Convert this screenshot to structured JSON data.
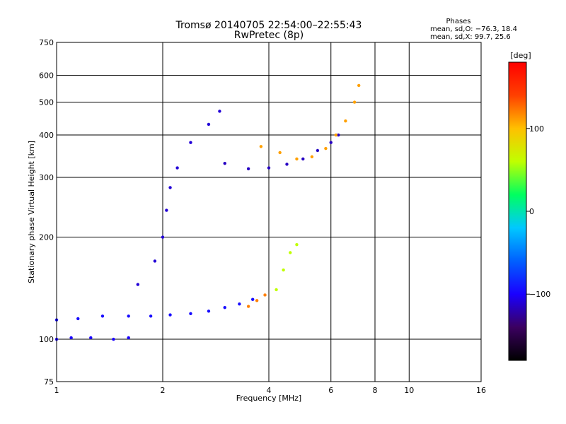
{
  "chart_data": {
    "type": "scatter",
    "title": "Tromsø 20140705 22:54:00–22:55:43",
    "subtitle": "RwPretec (8p)",
    "xlabel": "Frequency [MHz]",
    "ylabel": "Stationary phase Virtual Height [km]",
    "xscale": "log",
    "yscale": "log",
    "xlim": [
      1,
      16
    ],
    "ylim": [
      75,
      750
    ],
    "x_ticks": [
      1,
      2,
      4,
      6,
      8,
      10,
      16
    ],
    "x_tick_labels": [
      "1",
      "2",
      "4",
      "6",
      "8",
      "10",
      "16"
    ],
    "y_ticks": [
      75,
      100,
      200,
      300,
      400,
      500,
      600,
      750
    ],
    "y_tick_labels": [
      "75",
      "100",
      "200",
      "300",
      "400",
      "500",
      "600",
      "750"
    ],
    "grid": true,
    "phase_stats": {
      "heading": "Phases",
      "o_line": "mean, sd,O: −76.3, 18.4",
      "x_line": "mean, sd,X:  99.7, 25.6"
    },
    "colorbar": {
      "label": "[deg]",
      "range": [
        -180,
        180
      ],
      "ticks": [
        100,
        0,
        -100
      ],
      "tick_labels": [
        "100",
        "0",
        "−100"
      ],
      "colors": [
        "#000000",
        "#3b0060",
        "#1a00ff",
        "#0060ff",
        "#00c8ff",
        "#00ff60",
        "#c0ff00",
        "#ffc000",
        "#ff4000",
        "#ff0000"
      ]
    },
    "traces": [
      {
        "name": "",
        "phase": -100,
        "points": [
          [
            1.0,
            100
          ],
          [
            1.1,
            101
          ],
          [
            1.25,
            101
          ],
          [
            1.45,
            100
          ],
          [
            1.6,
            101
          ]
        ]
      },
      {
        "name": "",
        "phase": -95,
        "points": [
          [
            1.0,
            114
          ],
          [
            1.15,
            115
          ],
          [
            1.35,
            117
          ],
          [
            1.6,
            117
          ],
          [
            1.85,
            117
          ],
          [
            2.1,
            118
          ],
          [
            2.4,
            119
          ],
          [
            2.7,
            121
          ],
          [
            3.0,
            124
          ],
          [
            3.3,
            127
          ],
          [
            3.6,
            131
          ]
        ]
      },
      {
        "name": "",
        "phase": -110,
        "points": [
          [
            1.7,
            145
          ],
          [
            1.9,
            170
          ],
          [
            2.0,
            200
          ],
          [
            2.05,
            240
          ],
          [
            2.1,
            280
          ],
          [
            2.2,
            320
          ],
          [
            2.4,
            380
          ],
          [
            2.7,
            430
          ],
          [
            2.9,
            470
          ]
        ]
      },
      {
        "name": "",
        "phase": -115,
        "points": [
          [
            3.0,
            330
          ],
          [
            3.5,
            318
          ],
          [
            4.0,
            320
          ],
          [
            4.5,
            328
          ],
          [
            5.0,
            340
          ],
          [
            5.5,
            360
          ],
          [
            6.0,
            380
          ],
          [
            6.3,
            400
          ]
        ]
      },
      {
        "name": "",
        "phase": 110,
        "points": [
          [
            3.8,
            370
          ],
          [
            4.3,
            355
          ],
          [
            4.8,
            340
          ],
          [
            5.3,
            345
          ],
          [
            5.8,
            365
          ],
          [
            6.2,
            400
          ],
          [
            6.6,
            440
          ],
          [
            7.0,
            500
          ],
          [
            7.2,
            560
          ]
        ]
      },
      {
        "name": "",
        "phase": 60,
        "points": [
          [
            4.2,
            140
          ],
          [
            4.4,
            160
          ],
          [
            4.6,
            180
          ],
          [
            4.8,
            190
          ]
        ]
      },
      {
        "name": "",
        "phase": 120,
        "points": [
          [
            3.5,
            125
          ],
          [
            3.7,
            130
          ],
          [
            3.9,
            135
          ]
        ]
      }
    ]
  }
}
